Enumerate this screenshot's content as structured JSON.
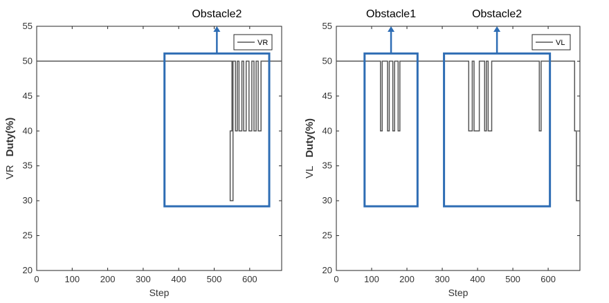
{
  "colors": {
    "annotation": "#2e6db4",
    "series": "#555555"
  },
  "chart_data": [
    {
      "type": "line",
      "name": "vr-chart",
      "xlabel": "Step",
      "ylabel_series": "VR",
      "ylabel_main": "Duty(%)",
      "xlim": [
        0,
        690
      ],
      "ylim": [
        20,
        55
      ],
      "xticks": [
        0,
        100,
        200,
        300,
        400,
        500,
        600
      ],
      "yticks": [
        20,
        25,
        30,
        35,
        40,
        45,
        50,
        55
      ],
      "legend": {
        "label": "VR",
        "position": "top-right"
      },
      "series": [
        {
          "name": "VR",
          "x": [
            0,
            550,
            550,
            553,
            553,
            545,
            545,
            553,
            553,
            560,
            560,
            565,
            565,
            570,
            570,
            578,
            578,
            583,
            583,
            590,
            590,
            598,
            598,
            606,
            606,
            612,
            612,
            618,
            618,
            624,
            624,
            632,
            632,
            690
          ],
          "y": [
            50,
            50,
            40,
            40,
            30,
            30,
            40,
            40,
            50,
            50,
            40,
            40,
            50,
            50,
            40,
            40,
            50,
            50,
            40,
            40,
            50,
            50,
            40,
            40,
            50,
            50,
            40,
            40,
            50,
            50,
            40,
            40,
            50,
            50
          ]
        }
      ],
      "annotations": [
        {
          "label": "Obstacle2",
          "box": {
            "x": [
              360,
              655
            ],
            "y": [
              29.2,
              51.1
            ]
          }
        }
      ]
    },
    {
      "type": "line",
      "name": "vl-chart",
      "xlabel": "Step",
      "ylabel_series": "VL",
      "ylabel_main": "Duty(%)",
      "xlim": [
        0,
        690
      ],
      "ylim": [
        20,
        55
      ],
      "xticks": [
        0,
        100,
        200,
        300,
        400,
        500,
        600
      ],
      "yticks": [
        20,
        25,
        30,
        35,
        40,
        45,
        50,
        55
      ],
      "legend": {
        "label": "VL",
        "position": "top-right"
      },
      "series": [
        {
          "name": "VL",
          "x": [
            0,
            125,
            125,
            130,
            130,
            145,
            145,
            150,
            150,
            160,
            160,
            165,
            165,
            175,
            175,
            180,
            180,
            190,
            190,
            375,
            375,
            385,
            385,
            390,
            390,
            405,
            405,
            420,
            420,
            425,
            425,
            430,
            430,
            440,
            440,
            445,
            445,
            575,
            575,
            580,
            580,
            675,
            675,
            680,
            680,
            690
          ],
          "y": [
            50,
            50,
            40,
            40,
            50,
            50,
            40,
            40,
            50,
            50,
            40,
            40,
            50,
            50,
            40,
            40,
            50,
            50,
            50,
            50,
            40,
            40,
            50,
            50,
            40,
            40,
            50,
            50,
            40,
            40,
            50,
            50,
            40,
            40,
            50,
            50,
            50,
            50,
            40,
            40,
            50,
            50,
            40,
            40,
            30,
            30
          ]
        }
      ],
      "annotations": [
        {
          "label": "Obstacle1",
          "box": {
            "x": [
              80,
              230
            ],
            "y": [
              29.2,
              51.1
            ]
          }
        },
        {
          "label": "Obstacle2",
          "box": {
            "x": [
              305,
              605
            ],
            "y": [
              29.2,
              51.1
            ]
          }
        }
      ]
    }
  ]
}
